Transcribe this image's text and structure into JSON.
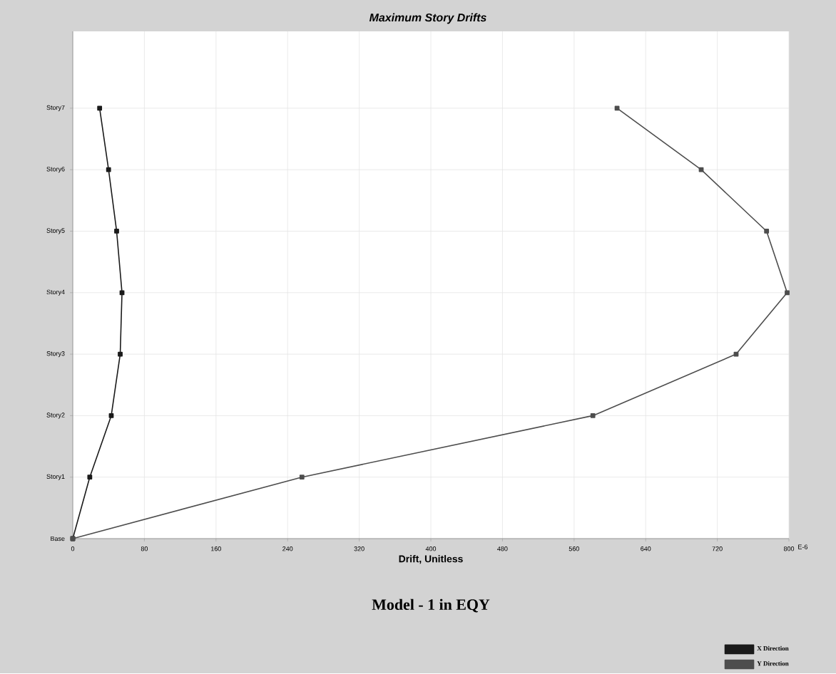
{
  "chart_data": {
    "type": "line",
    "orientation": "horizontal",
    "title": "Maximum Story Drifts",
    "xlabel": "Drift, Unitless",
    "categories": [
      "Story7",
      "Story6",
      "Story5",
      "Story4",
      "Story3",
      "Story2",
      "Story1",
      "Base"
    ],
    "series": [
      {
        "name": "X Direction",
        "color": "#1a1a1a",
        "values": [
          30,
          40,
          49,
          55,
          53,
          43,
          19,
          0
        ]
      },
      {
        "name": "Y Direction",
        "color": "#4d4d4d",
        "values": [
          608,
          702,
          775,
          798,
          741,
          581,
          256,
          0
        ]
      }
    ],
    "xlim": [
      0,
      800
    ],
    "xticks": [
      0,
      80,
      160,
      240,
      320,
      400,
      480,
      560,
      640,
      720,
      800
    ],
    "grid": true,
    "legend": "bottom right",
    "marker": "square",
    "annotations": [
      "E-6",
      "Model - 1 in EQY"
    ]
  }
}
